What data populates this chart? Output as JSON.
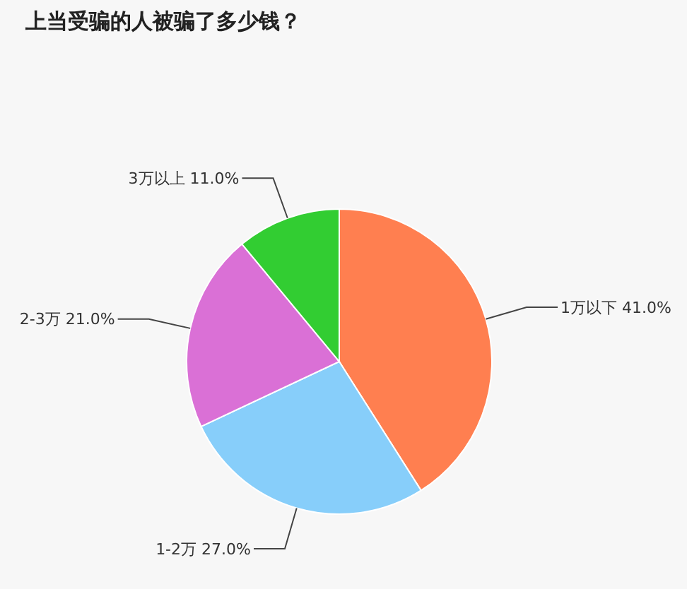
{
  "chart_data": {
    "type": "pie",
    "title": "上当受骗的人被骗了多少钱？",
    "categories": [
      "1万以下",
      "1-2万",
      "2-3万",
      "3万以上"
    ],
    "values": [
      41.0,
      27.0,
      21.0,
      11.0
    ],
    "colors": [
      "#ff7f50",
      "#87cefa",
      "#da70d6",
      "#32cd32"
    ],
    "value_labels": [
      "41.0%",
      "27.0%",
      "21.0%",
      "11.0%"
    ]
  }
}
